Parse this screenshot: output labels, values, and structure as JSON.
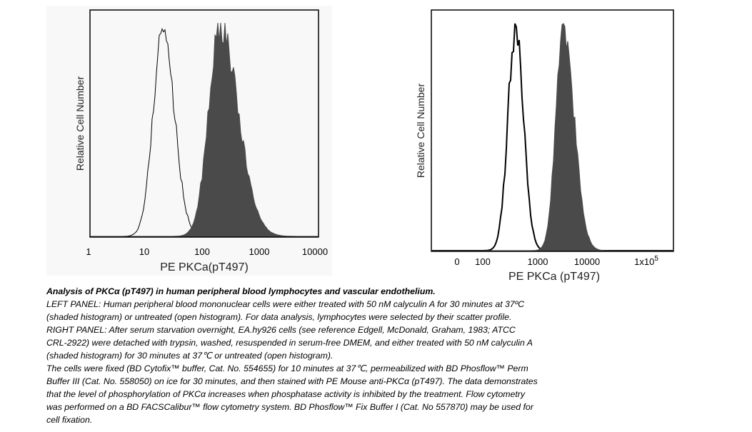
{
  "chart_data": [
    {
      "type": "histogram",
      "panel": "left",
      "title": "",
      "xlabel": "PE PKCa(pT497)",
      "ylabel": "Relative Cell Number",
      "xscale": "log",
      "xlim": [
        1,
        10000
      ],
      "xticks": [
        "1",
        "10",
        "100",
        "1000",
        "10000"
      ],
      "xtick_values": [
        1,
        10,
        100,
        1000,
        10000
      ],
      "series": [
        {
          "name": "untreated (open histogram)",
          "style": "open",
          "peak": 20,
          "sd_log10_left": 0.17,
          "sd_log10_right": 0.2,
          "color": "#000000"
        },
        {
          "name": "calyculin A treated (shaded histogram)",
          "style": "shaded",
          "peak": 200,
          "sd_log10_left": 0.2,
          "sd_log10_right": 0.32,
          "color": "#4a4a4a"
        }
      ]
    },
    {
      "type": "histogram",
      "panel": "right",
      "title": "",
      "xlabel": "PE PKCa (pT497)",
      "ylabel": "Relative Cell Number",
      "xscale": "logicle",
      "xlim": [
        0,
        300000
      ],
      "xticks": [
        "0",
        "100",
        "1000",
        "10000",
        "1x10^5"
      ],
      "xtick_values": [
        0,
        100,
        1000,
        10000,
        100000
      ],
      "series": [
        {
          "name": "untreated (open histogram)",
          "style": "open",
          "peak": 420,
          "sd_log10_left": 0.14,
          "sd_log10_right": 0.15,
          "color": "#000000"
        },
        {
          "name": "calyculin A treated (shaded histogram)",
          "style": "shaded",
          "peak": 3300,
          "sd_log10_left": 0.14,
          "sd_log10_right": 0.2,
          "color": "#4a4a4a"
        }
      ]
    }
  ],
  "caption": {
    "title": "Analysis of PKCα (pT497) in human peripheral blood lymphocytes and vascular endothelium.",
    "lines": [
      "LEFT PANEL: Human peripheral blood mononuclear cells were either treated with 50 nM calyculin A for 30 minutes at 37ºC",
      "(shaded histogram) or untreated (open histogram). For data analysis, lymphocytes were selected by their scatter profile.",
      "RIGHT PANEL: After serum starvation overnight, EA.hy926 cells (see reference Edgell, McDonald, Graham, 1983; ATCC",
      "CRL-2922) were detached with trypsin, washed, resuspended in serum-free DMEM, and either treated with 50 nM calyculin A",
      "(shaded histogram) for 30 minutes at 37℃ or untreated (open histogram).",
      "The cells were fixed (BD Cytofix™ buffer, Cat. No. 554655) for 10 minutes at 37℃, permeabilized with BD Phosflow™ Perm",
      "Buffer III (Cat. No. 558050) on ice for 30 minutes, and then stained with PE Mouse anti-PKCα (pT497).  The data demonstrates",
      "that the level of phosphorylation of PKCα increases when phosphatase activity is inhibited by the treatment.  Flow cytometry",
      "was performed on a BD FACSCalibur™ flow cytometry system. BD Phosflow™ Fix Buffer I (Cat. No 557870) may be used for",
      "cell fixation."
    ]
  }
}
